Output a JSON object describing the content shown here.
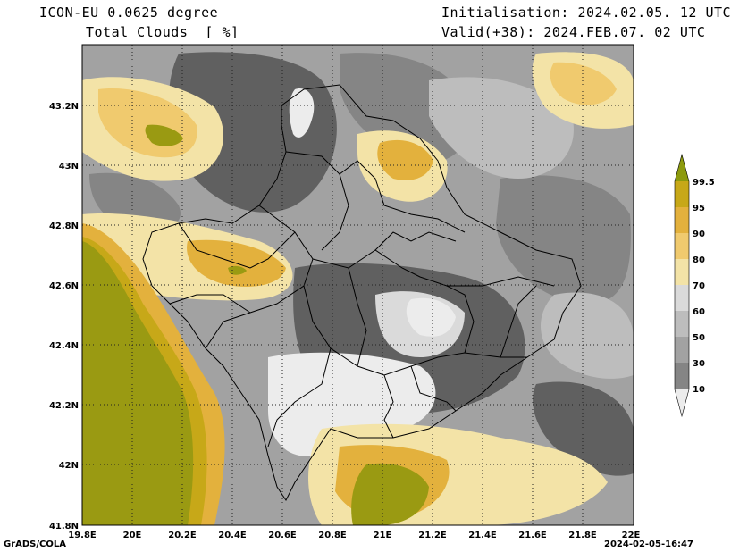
{
  "header": {
    "model_title": "ICON-EU 0.0625 degree",
    "variable": "Total Clouds  [ %]",
    "initialisation": "Initialisation: 2024.02.05. 12 UTC",
    "valid": "Valid(+38): 2024.FEB.07. 02 UTC"
  },
  "axes": {
    "lat_labels": [
      "43.2N",
      "43N",
      "42.8N",
      "42.6N",
      "42.4N",
      "42.2N",
      "42N",
      "41.8N"
    ],
    "lon_labels": [
      "19.8E",
      "20E",
      "20.2E",
      "20.4E",
      "20.6E",
      "20.8E",
      "21E",
      "21.2E",
      "21.4E",
      "21.6E",
      "21.8E",
      "22E"
    ]
  },
  "colorbar": {
    "labels": [
      "99.5",
      "95",
      "90",
      "80",
      "70",
      "60",
      "50",
      "30",
      "10"
    ],
    "colors": {
      "c95_99": "#c7a818",
      "c90_95": "#e3b13d",
      "c80_90": "#f0ca6e",
      "c70_80": "#f3e3a7",
      "c60_70": "#dadada",
      "c50_60": "#bdbdbd",
      "c30_50": "#a2a2a2",
      "c10_30": "#858585",
      "c0_10": "#606060",
      "top": "#8c9a0e",
      "bottom": "#ececec"
    }
  },
  "footer": {
    "left": "GrADS/COLA",
    "right": "2024-02-05-16:47"
  }
}
